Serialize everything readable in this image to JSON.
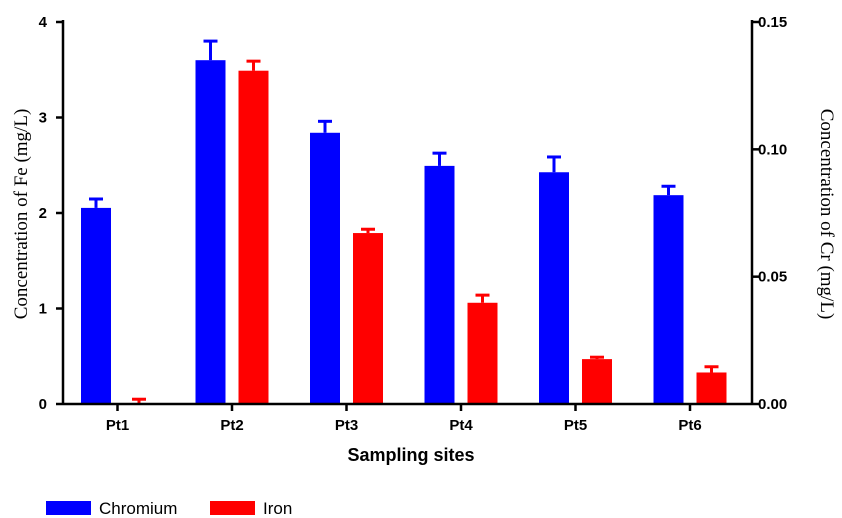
{
  "chart_data": {
    "type": "bar",
    "xlabel": "Sampling sites",
    "ylabel_left": "Concentration of Fe (mg/L)",
    "ylabel_right": "Concentration of  Cr (mg/L)",
    "categories": [
      "Pt1",
      "Pt2",
      "Pt3",
      "Pt4",
      "Pt5",
      "Pt6"
    ],
    "y_left": {
      "range": [
        0,
        4
      ],
      "ticks": [
        "0",
        "1",
        "2",
        "3",
        "4"
      ]
    },
    "y_right": {
      "range": [
        0,
        0.15
      ],
      "ticks": [
        "0.00",
        "0.05",
        "0.10",
        "0.15"
      ]
    },
    "grid": false,
    "legend": "bottom-left",
    "series": [
      {
        "name": "Chromium",
        "axis": "right",
        "color": "#0000ff",
        "values": [
          0.077,
          0.135,
          0.1065,
          0.0935,
          0.091,
          0.082
        ],
        "errors": [
          0.0035,
          0.0075,
          0.0045,
          0.005,
          0.006,
          0.0035
        ]
      },
      {
        "name": "Iron",
        "axis": "left",
        "color": "#ff0000",
        "values": [
          0.01,
          3.49,
          1.79,
          1.06,
          0.47,
          0.33
        ],
        "errors": [
          0.04,
          0.1,
          0.04,
          0.08,
          0.02,
          0.06
        ]
      }
    ]
  }
}
